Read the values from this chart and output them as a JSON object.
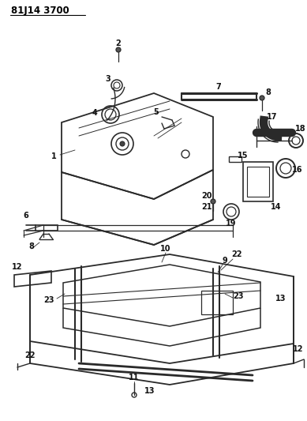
{
  "title": "81J14 3700",
  "bg_color": "#ffffff",
  "line_color": "#2a2a2a",
  "text_color": "#111111",
  "figsize": [
    3.89,
    5.33
  ],
  "dpi": 100
}
